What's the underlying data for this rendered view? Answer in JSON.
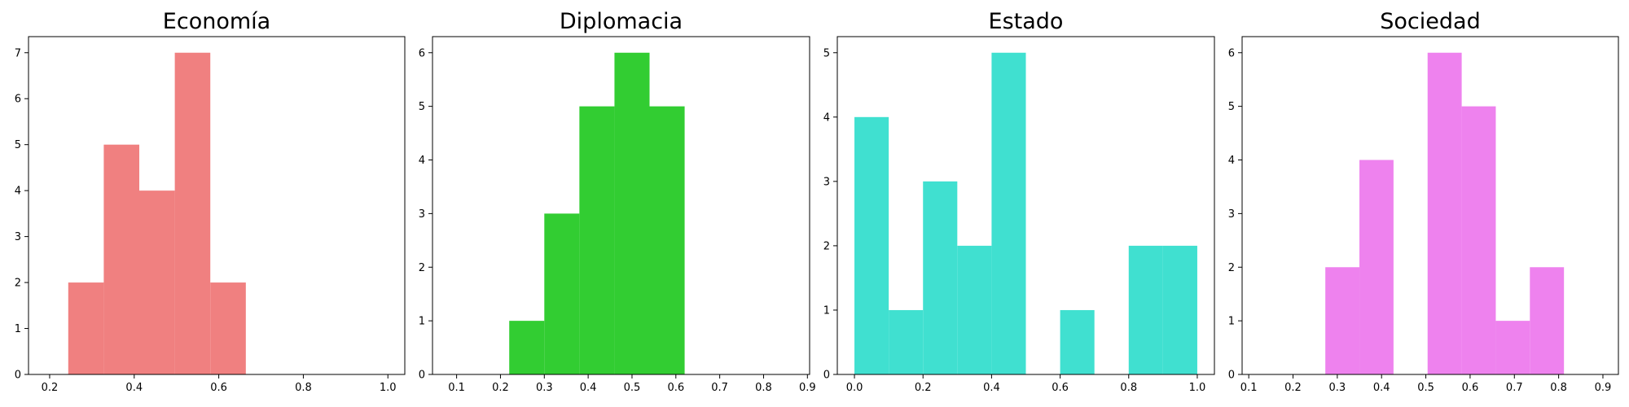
{
  "figure": {
    "background": "#ffffff",
    "axis_color": "#000000"
  },
  "chart_data": [
    {
      "type": "bar",
      "title": "Economía",
      "color": "#f08080",
      "bins": [
        [
          0.244,
          0.328
        ],
        [
          0.328,
          0.412
        ],
        [
          0.412,
          0.496
        ],
        [
          0.496,
          0.58
        ],
        [
          0.58,
          0.664
        ]
      ],
      "values": [
        2,
        5,
        4,
        7,
        2
      ],
      "xlim": [
        0.15,
        1.04
      ],
      "ylim": [
        0,
        7.35
      ],
      "xticks": [
        0.2,
        0.4,
        0.6,
        0.8,
        1.0
      ],
      "xtick_labels": [
        "0.2",
        "0.4",
        "0.6",
        "0.8",
        "1.0"
      ],
      "yticks": [
        0,
        1,
        2,
        3,
        4,
        5,
        6,
        7
      ],
      "ytick_labels": [
        "0",
        "1",
        "2",
        "3",
        "4",
        "5",
        "6",
        "7"
      ]
    },
    {
      "type": "bar",
      "title": "Diplomacia",
      "color": "#32cd32",
      "bins": [
        [
          0.22,
          0.3
        ],
        [
          0.3,
          0.38
        ],
        [
          0.38,
          0.46
        ],
        [
          0.46,
          0.54
        ],
        [
          0.54,
          0.62
        ]
      ],
      "values": [
        1,
        3,
        5,
        6,
        5
      ],
      "xlim": [
        0.045,
        0.905
      ],
      "ylim": [
        0,
        6.3
      ],
      "xticks": [
        0.1,
        0.2,
        0.3,
        0.4,
        0.5,
        0.6,
        0.7,
        0.8,
        0.9
      ],
      "xtick_labels": [
        "0.1",
        "0.2",
        "0.3",
        "0.4",
        "0.5",
        "0.6",
        "0.7",
        "0.8",
        "0.9"
      ],
      "yticks": [
        0,
        1,
        2,
        3,
        4,
        5,
        6
      ],
      "ytick_labels": [
        "0",
        "1",
        "2",
        "3",
        "4",
        "5",
        "6"
      ]
    },
    {
      "type": "bar",
      "title": "Estado",
      "color": "#40e0d0",
      "bins": [
        [
          0.0,
          0.1
        ],
        [
          0.1,
          0.2
        ],
        [
          0.2,
          0.3
        ],
        [
          0.3,
          0.4
        ],
        [
          0.4,
          0.5
        ],
        [
          0.5,
          0.6
        ],
        [
          0.6,
          0.7
        ],
        [
          0.7,
          0.8
        ],
        [
          0.8,
          0.9
        ],
        [
          0.9,
          1.0
        ]
      ],
      "values": [
        4,
        1,
        3,
        2,
        5,
        0,
        1,
        0,
        2,
        2
      ],
      "xlim": [
        -0.05,
        1.05
      ],
      "ylim": [
        0,
        5.25
      ],
      "xticks": [
        0.0,
        0.2,
        0.4,
        0.6,
        0.8,
        1.0
      ],
      "xtick_labels": [
        "0.0",
        "0.2",
        "0.4",
        "0.6",
        "0.8",
        "1.0"
      ],
      "yticks": [
        0,
        1,
        2,
        3,
        4,
        5
      ],
      "ytick_labels": [
        "0",
        "1",
        "2",
        "3",
        "4",
        "5"
      ]
    },
    {
      "type": "bar",
      "title": "Sociedad",
      "color": "#ee82ee",
      "bins": [
        [
          0.273,
          0.35
        ],
        [
          0.35,
          0.427
        ],
        [
          0.427,
          0.504
        ],
        [
          0.504,
          0.581
        ],
        [
          0.581,
          0.658
        ],
        [
          0.658,
          0.735
        ],
        [
          0.735,
          0.812
        ]
      ],
      "values": [
        2,
        4,
        0,
        6,
        5,
        1,
        2
      ],
      "xlim": [
        0.085,
        0.935
      ],
      "ylim": [
        0,
        6.3
      ],
      "xticks": [
        0.1,
        0.2,
        0.3,
        0.4,
        0.5,
        0.6,
        0.7,
        0.8,
        0.9
      ],
      "xtick_labels": [
        "0.1",
        "0.2",
        "0.3",
        "0.4",
        "0.5",
        "0.6",
        "0.7",
        "0.8",
        "0.9"
      ],
      "yticks": [
        0,
        1,
        2,
        3,
        4,
        5,
        6
      ],
      "ytick_labels": [
        "0",
        "1",
        "2",
        "3",
        "4",
        "5",
        "6"
      ]
    }
  ]
}
